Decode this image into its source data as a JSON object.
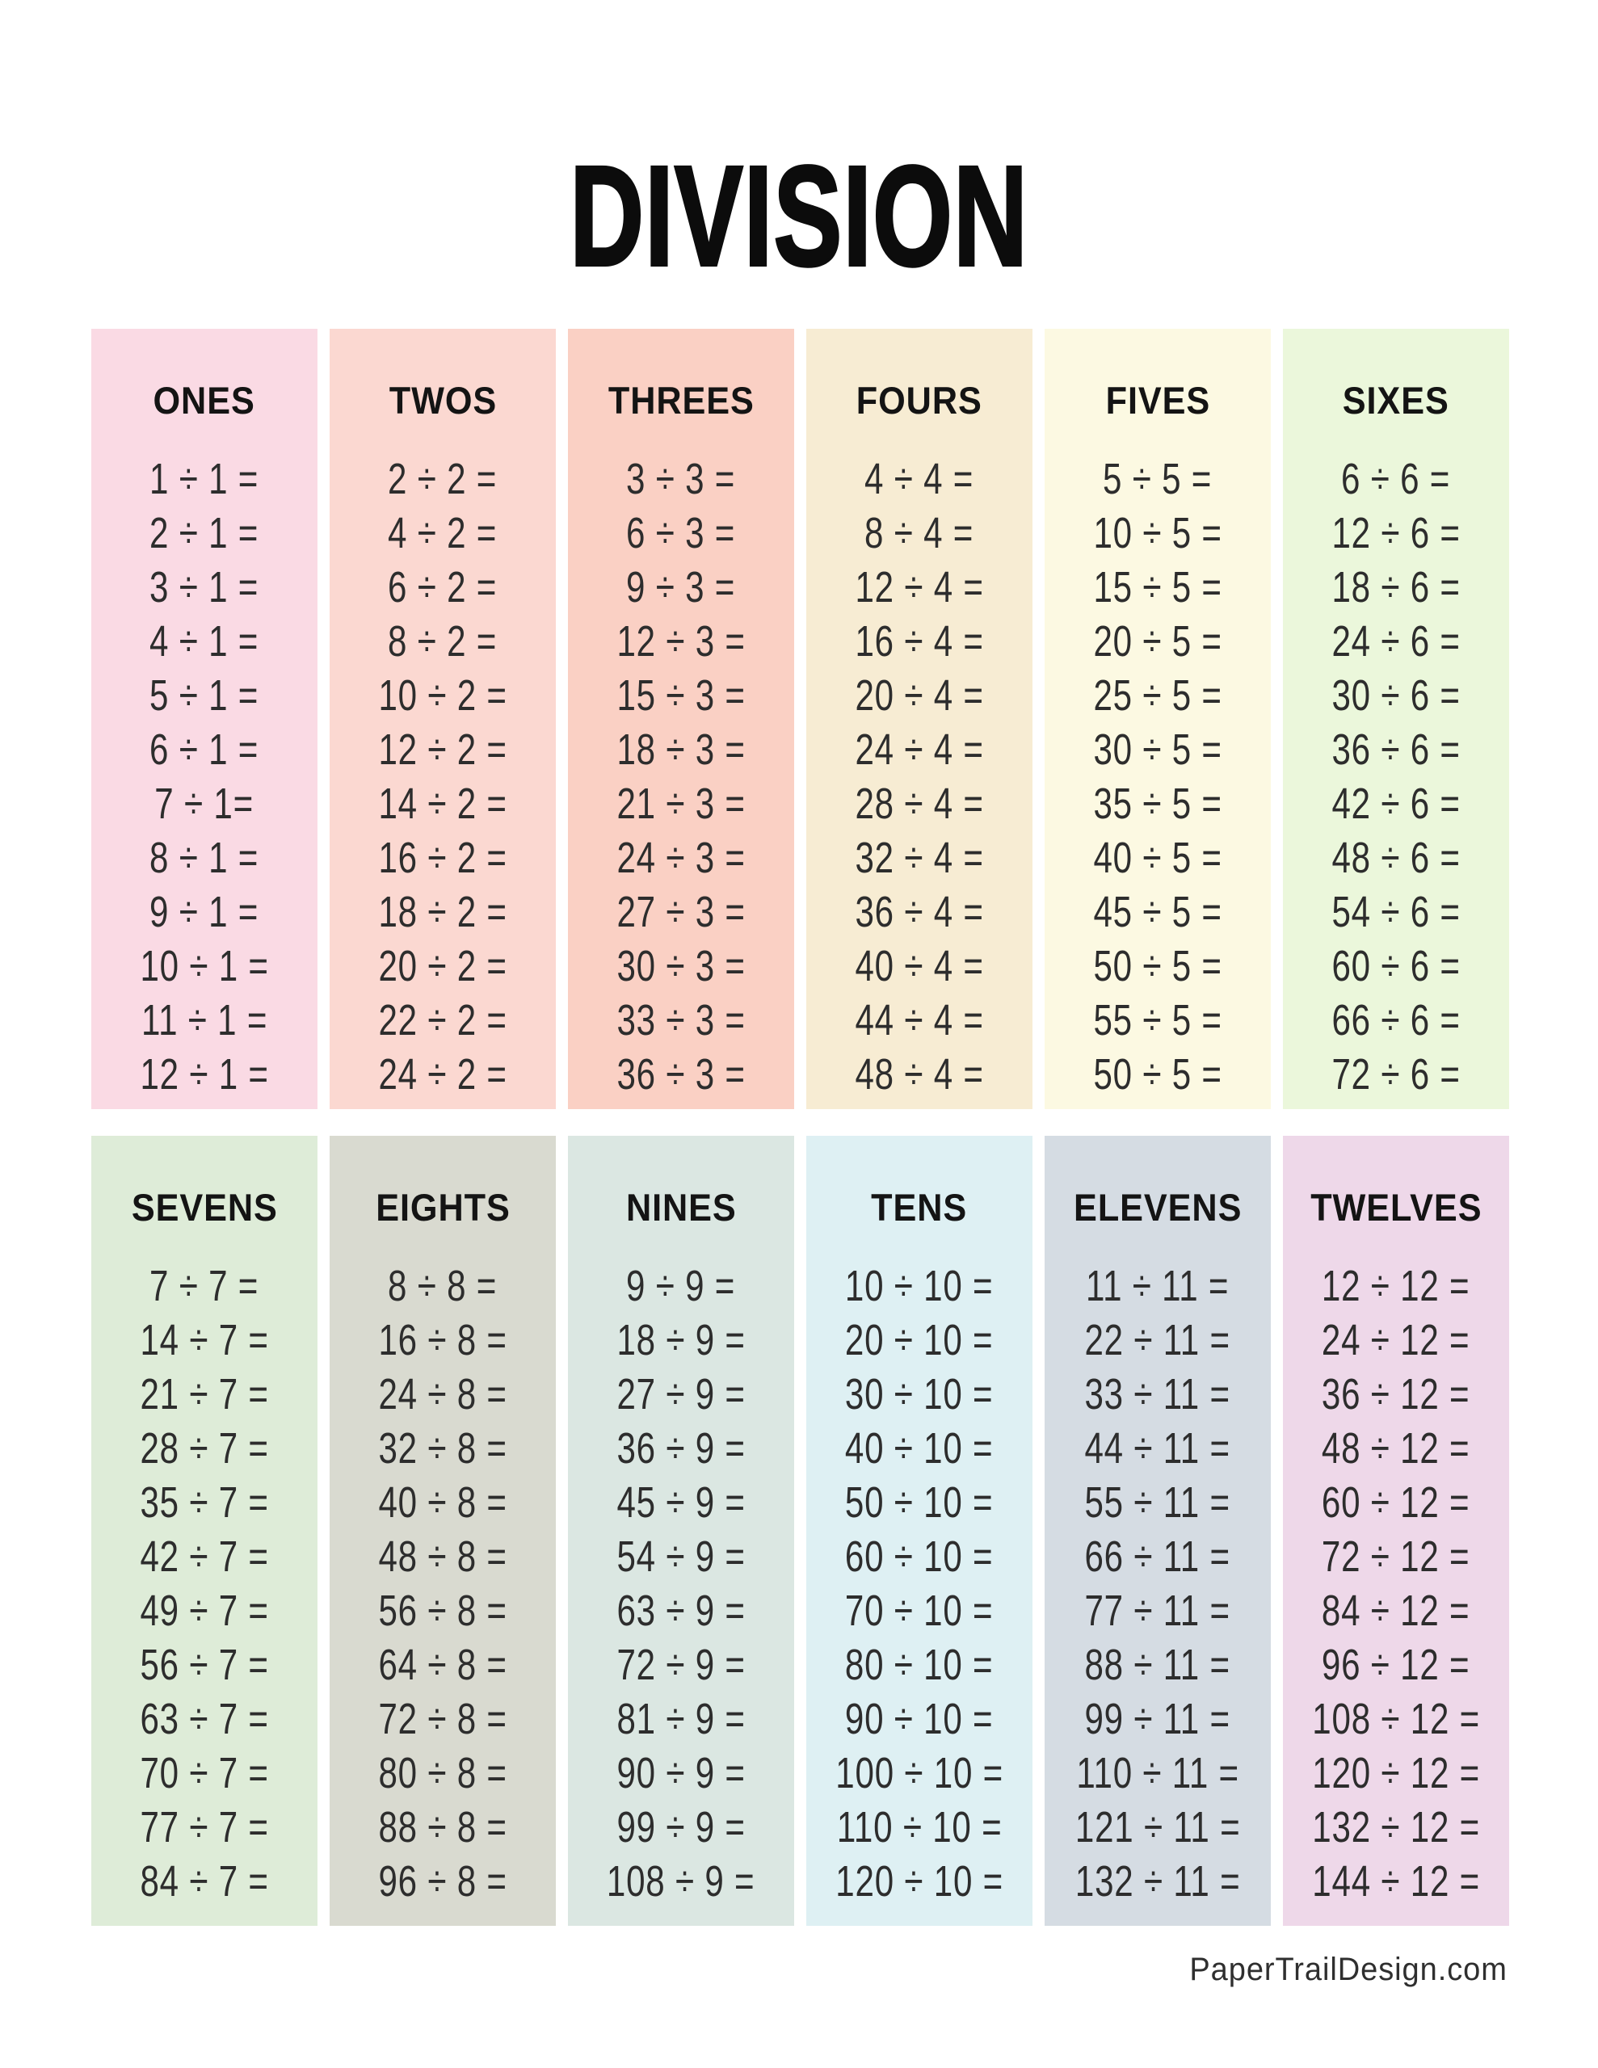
{
  "title": "DIVISION",
  "footer": "PaperTrailDesign.com",
  "rows": [
    {
      "panels": [
        {
          "label": "ONES",
          "bg": "#fadae4",
          "equations": [
            "1 ÷ 1 =",
            "2 ÷ 1 =",
            "3 ÷ 1 =",
            "4 ÷ 1 =",
            "5 ÷ 1 =",
            "6 ÷ 1 =",
            "7 ÷ 1=",
            "8 ÷ 1 =",
            "9 ÷ 1 =",
            "10 ÷ 1 =",
            "11 ÷ 1 =",
            "12 ÷ 1 ="
          ]
        },
        {
          "label": "TWOS",
          "bg": "#fbd8d1",
          "equations": [
            "2 ÷ 2 =",
            "4 ÷ 2 =",
            "6 ÷ 2 =",
            "8 ÷ 2 =",
            "10 ÷ 2 =",
            "12 ÷ 2 =",
            "14 ÷ 2 =",
            "16 ÷ 2 =",
            "18 ÷ 2 =",
            "20 ÷ 2 =",
            "22 ÷ 2 =",
            "24 ÷ 2 ="
          ]
        },
        {
          "label": "THREES",
          "bg": "#fad0c4",
          "equations": [
            "3 ÷ 3 =",
            "6 ÷ 3 =",
            "9 ÷ 3 =",
            "12 ÷ 3 =",
            "15 ÷ 3 =",
            "18 ÷ 3 =",
            "21 ÷ 3 =",
            "24 ÷  3 =",
            "27 ÷ 3 =",
            "30 ÷ 3 =",
            "33 ÷ 3 =",
            "36 ÷ 3 ="
          ]
        },
        {
          "label": "FOURS",
          "bg": "#f7ecd3",
          "equations": [
            "4 ÷ 4 =",
            "8 ÷ 4 =",
            "12 ÷ 4 =",
            "16 ÷ 4 =",
            "20 ÷ 4 =",
            "24 ÷ 4 =",
            "28 ÷ 4 =",
            "32 ÷ 4 =",
            "36 ÷ 4 =",
            "40 ÷ 4 =",
            "44 ÷ 4 =",
            "48 ÷ 4 ="
          ]
        },
        {
          "label": "FIVES",
          "bg": "#fcf9e2",
          "equations": [
            "5 ÷ 5 =",
            "10 ÷ 5 =",
            "15 ÷ 5 =",
            "20 ÷ 5 =",
            "25 ÷ 5 =",
            "30 ÷ 5 =",
            "35 ÷ 5 =",
            "40 ÷ 5 =",
            "45 ÷ 5 =",
            "50 ÷ 5 =",
            "55 ÷ 5 =",
            "50 ÷ 5 ="
          ]
        },
        {
          "label": "SIXES",
          "bg": "#ebf7db",
          "equations": [
            "6 ÷ 6  =",
            "12 ÷ 6 =",
            "18 ÷ 6 =",
            "24 ÷ 6 =",
            "30 ÷ 6 =",
            "36 ÷ 6 =",
            "42 ÷ 6 =",
            "48 ÷ 6 =",
            "54 ÷ 6 =",
            "60 ÷ 6 =",
            "66 ÷ 6 =",
            "72 ÷ 6 ="
          ]
        }
      ]
    },
    {
      "panels": [
        {
          "label": "SEVENS",
          "bg": "#deecd8",
          "equations": [
            "7 ÷ 7 =",
            "14 ÷ 7 =",
            "21 ÷ 7 =",
            "28 ÷ 7 =",
            "35 ÷ 7 =",
            "42 ÷ 7 =",
            "49 ÷ 7 =",
            "56 ÷ 7 =",
            "63 ÷ 7 =",
            "70 ÷ 7 =",
            "77 ÷ 7 =",
            "84 ÷ 7 ="
          ]
        },
        {
          "label": "EIGHTS",
          "bg": "#d9dad0",
          "equations": [
            "8 ÷ 8 =",
            "16 ÷ 8 =",
            "24 ÷ 8 =",
            "32 ÷ 8 =",
            "40 ÷ 8 =",
            "48 ÷ 8 =",
            "56 ÷ 8 =",
            "64 ÷ 8 =",
            "72 ÷ 8 =",
            "80 ÷ 8 =",
            "88 ÷ 8 =",
            "96 ÷ 8 ="
          ]
        },
        {
          "label": "NINES",
          "bg": "#dbe7e2",
          "equations": [
            "9 ÷ 9 =",
            "18 ÷ 9 =",
            "27 ÷ 9 =",
            "36 ÷ 9 =",
            "45 ÷ 9 =",
            "54 ÷ 9 =",
            "63 ÷ 9 =",
            "72 ÷ 9 =",
            "81 ÷ 9 =",
            "90 ÷ 9 =",
            "99 ÷ 9 =",
            "108 ÷ 9 ="
          ]
        },
        {
          "label": "TENS",
          "bg": "#def0f3",
          "equations": [
            "10 ÷ 10 =",
            "20 ÷ 10 =",
            "30 ÷ 10 =",
            "40 ÷ 10 =",
            "50 ÷ 10 =",
            "60 ÷ 10 =",
            "70 ÷ 10 =",
            "80 ÷ 10 =",
            "90 ÷ 10 =",
            "100 ÷ 10 =",
            "110 ÷ 10 =",
            "120 ÷ 10 ="
          ]
        },
        {
          "label": "ELEVENS",
          "bg": "#d5dce3",
          "equations": [
            "11 ÷ 11 =",
            "22 ÷ 11 =",
            "33 ÷ 11 =",
            "44 ÷ 11 =",
            "55 ÷ 11 =",
            "66 ÷ 11 =",
            "77 ÷ 11 =",
            "88 ÷ 11 =",
            "99 ÷ 11 =",
            "110 ÷ 11 =",
            "121 ÷ 11 =",
            "132 ÷ 11 ="
          ]
        },
        {
          "label": "TWELVES",
          "bg": "#eed8e9",
          "equations": [
            "12 ÷ 12 =",
            "24 ÷ 12 =",
            "36 ÷ 12 =",
            "48 ÷ 12 =",
            "60 ÷ 12 =",
            "72 ÷ 12 =",
            "84 ÷ 12 =",
            "96 ÷ 12 =",
            "108 ÷ 12 =",
            "120 ÷ 12 =",
            "132 ÷ 12 =",
            "144 ÷ 12 ="
          ]
        }
      ]
    }
  ]
}
